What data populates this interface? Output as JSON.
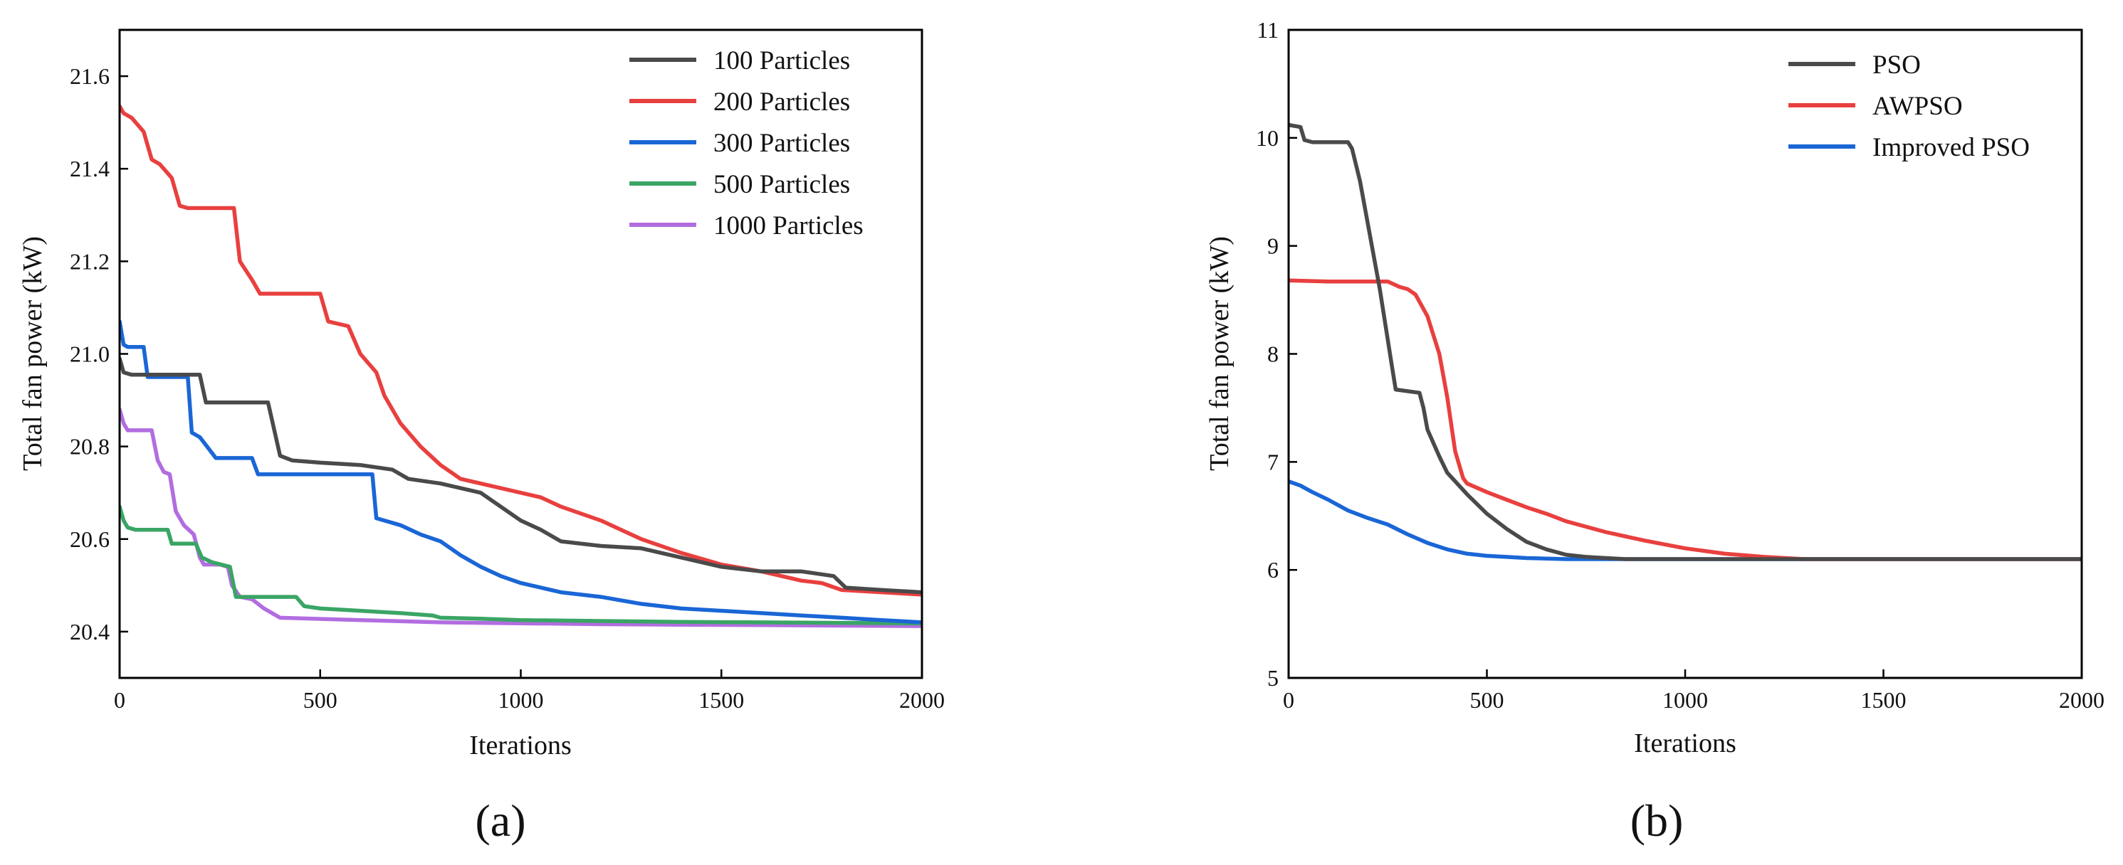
{
  "chart_data": [
    {
      "type": "line",
      "panel_label": "(a)",
      "xlabel": "Iterations",
      "ylabel": "Total fan power (kW)",
      "xlim": [
        0,
        2000
      ],
      "ylim": [
        20.3,
        21.7
      ],
      "xticks": [
        0,
        500,
        1000,
        1500,
        2000
      ],
      "yticks": [
        20.4,
        20.6,
        20.8,
        21.0,
        21.2,
        21.4,
        21.6
      ],
      "xtick_labels": [
        "0",
        "500",
        "1000",
        "1500",
        "2000"
      ],
      "ytick_labels": [
        "20.4",
        "20.6",
        "20.8",
        "21.0",
        "21.2",
        "21.4",
        "21.6"
      ],
      "legend_position": "top-right",
      "series": [
        {
          "name": "100 Particles",
          "color": "#4a4a4a",
          "x": [
            0,
            10,
            30,
            200,
            215,
            370,
            400,
            430,
            500,
            600,
            680,
            720,
            800,
            900,
            1000,
            1050,
            1100,
            1200,
            1300,
            1400,
            1500,
            1600,
            1700,
            1780,
            1810,
            1900,
            2000
          ],
          "y": [
            20.99,
            20.96,
            20.955,
            20.955,
            20.895,
            20.895,
            20.78,
            20.77,
            20.765,
            20.76,
            20.75,
            20.73,
            20.72,
            20.7,
            20.64,
            20.62,
            20.595,
            20.585,
            20.58,
            20.56,
            20.54,
            20.53,
            20.53,
            20.52,
            20.495,
            20.49,
            20.485
          ]
        },
        {
          "name": "200 Particles",
          "color": "#e8403f",
          "x": [
            0,
            10,
            30,
            60,
            80,
            100,
            130,
            150,
            170,
            285,
            300,
            330,
            350,
            500,
            520,
            570,
            600,
            640,
            660,
            700,
            750,
            800,
            850,
            900,
            950,
            1000,
            1050,
            1100,
            1200,
            1300,
            1400,
            1500,
            1600,
            1700,
            1750,
            1800,
            1900,
            2000
          ],
          "y": [
            21.535,
            21.52,
            21.51,
            21.48,
            21.42,
            21.41,
            21.38,
            21.32,
            21.315,
            21.315,
            21.2,
            21.16,
            21.13,
            21.13,
            21.07,
            21.06,
            21.0,
            20.96,
            20.91,
            20.85,
            20.8,
            20.76,
            20.73,
            20.72,
            20.71,
            20.7,
            20.69,
            20.67,
            20.64,
            20.6,
            20.57,
            20.545,
            20.53,
            20.51,
            20.505,
            20.49,
            20.485,
            20.48
          ]
        },
        {
          "name": "300 Particles",
          "color": "#1a66d6",
          "x": [
            0,
            10,
            20,
            60,
            70,
            170,
            180,
            200,
            240,
            330,
            345,
            630,
            640,
            700,
            750,
            800,
            850,
            900,
            950,
            1000,
            1050,
            1100,
            1200,
            1300,
            1400,
            1500,
            1600,
            1700,
            1800,
            1900,
            2000
          ],
          "y": [
            21.07,
            21.02,
            21.015,
            21.015,
            20.95,
            20.95,
            20.83,
            20.82,
            20.775,
            20.775,
            20.74,
            20.74,
            20.645,
            20.63,
            20.61,
            20.595,
            20.565,
            20.54,
            20.52,
            20.505,
            20.495,
            20.485,
            20.475,
            20.46,
            20.45,
            20.445,
            20.44,
            20.435,
            20.43,
            20.425,
            20.42
          ]
        },
        {
          "name": "500 Particles",
          "color": "#3aa565",
          "x": [
            0,
            10,
            20,
            40,
            120,
            130,
            190,
            205,
            230,
            275,
            290,
            440,
            460,
            500,
            600,
            700,
            780,
            800,
            900,
            1000,
            1200,
            1400,
            1600,
            1800,
            2000
          ],
          "y": [
            20.67,
            20.64,
            20.625,
            20.62,
            20.62,
            20.59,
            20.59,
            20.56,
            20.55,
            20.54,
            20.475,
            20.475,
            20.455,
            20.45,
            20.445,
            20.44,
            20.435,
            20.43,
            20.428,
            20.425,
            20.423,
            20.421,
            20.42,
            20.419,
            20.418
          ]
        },
        {
          "name": "1000 Particles",
          "color": "#b26de0",
          "x": [
            0,
            10,
            20,
            40,
            80,
            95,
            110,
            125,
            140,
            160,
            185,
            200,
            210,
            250,
            270,
            280,
            300,
            330,
            360,
            380,
            400,
            600,
            800,
            1000,
            1200,
            1400,
            1600,
            1800,
            2000
          ],
          "y": [
            20.88,
            20.85,
            20.835,
            20.835,
            20.835,
            20.77,
            20.745,
            20.74,
            20.66,
            20.63,
            20.61,
            20.56,
            20.545,
            20.545,
            20.54,
            20.5,
            20.475,
            20.47,
            20.45,
            20.44,
            20.43,
            20.425,
            20.42,
            20.418,
            20.416,
            20.415,
            20.414,
            20.413,
            20.412
          ]
        }
      ]
    },
    {
      "type": "line",
      "panel_label": "(b)",
      "xlabel": "Iterations",
      "ylabel": "Total fan power (kW)",
      "xlim": [
        0,
        2000
      ],
      "ylim": [
        5,
        11
      ],
      "xticks": [
        0,
        500,
        1000,
        1500,
        2000
      ],
      "yticks": [
        5,
        6,
        7,
        8,
        9,
        10,
        11
      ],
      "xtick_labels": [
        "0",
        "500",
        "1000",
        "1500",
        "2000"
      ],
      "ytick_labels": [
        "5",
        "6",
        "7",
        "8",
        "9",
        "10",
        "11"
      ],
      "legend_position": "top-right",
      "series": [
        {
          "name": "PSO",
          "color": "#4a4a4a",
          "x": [
            0,
            30,
            40,
            60,
            150,
            160,
            180,
            200,
            230,
            260,
            270,
            330,
            340,
            350,
            380,
            400,
            450,
            500,
            550,
            600,
            650,
            700,
            750,
            800,
            850,
            900,
            1000,
            1500,
            2000
          ],
          "y": [
            10.12,
            10.1,
            9.98,
            9.96,
            9.96,
            9.9,
            9.6,
            9.2,
            8.6,
            7.9,
            7.67,
            7.64,
            7.5,
            7.3,
            7.05,
            6.9,
            6.7,
            6.52,
            6.38,
            6.26,
            6.19,
            6.14,
            6.12,
            6.11,
            6.1,
            6.1,
            6.1,
            6.1,
            6.1
          ]
        },
        {
          "name": "AWPSO",
          "color": "#e8403f",
          "x": [
            0,
            100,
            200,
            250,
            280,
            300,
            320,
            350,
            380,
            400,
            420,
            440,
            450,
            500,
            550,
            600,
            650,
            700,
            800,
            900,
            1000,
            1100,
            1200,
            1300,
            1500,
            2000
          ],
          "y": [
            8.68,
            8.67,
            8.67,
            8.67,
            8.62,
            8.6,
            8.55,
            8.35,
            8.0,
            7.6,
            7.1,
            6.85,
            6.8,
            6.72,
            6.65,
            6.58,
            6.52,
            6.45,
            6.35,
            6.27,
            6.2,
            6.15,
            6.12,
            6.1,
            6.1,
            6.1
          ]
        },
        {
          "name": "Improved PSO",
          "color": "#1a66d6",
          "x": [
            0,
            30,
            60,
            100,
            150,
            200,
            250,
            300,
            350,
            400,
            450,
            500,
            550,
            600,
            700,
            800,
            1000,
            1500,
            2000
          ],
          "y": [
            6.82,
            6.78,
            6.72,
            6.65,
            6.55,
            6.48,
            6.42,
            6.33,
            6.25,
            6.19,
            6.15,
            6.13,
            6.12,
            6.11,
            6.1,
            6.1,
            6.1,
            6.1,
            6.1
          ]
        }
      ]
    }
  ]
}
